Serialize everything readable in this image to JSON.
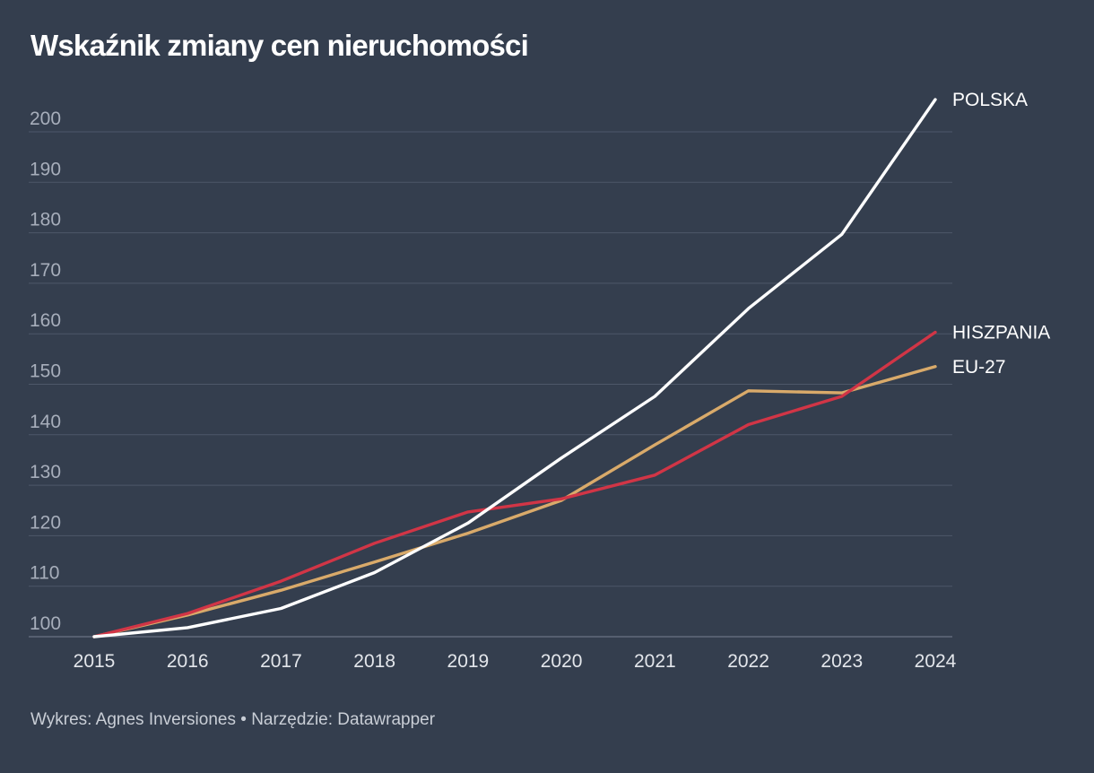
{
  "chart_data": {
    "type": "line",
    "title": "Wskaźnik zmiany cen nieruchomości",
    "x": [
      "2015",
      "2016",
      "2017",
      "2018",
      "2019",
      "2020",
      "2021",
      "2022",
      "2023",
      "2024"
    ],
    "yticks": [
      100,
      110,
      120,
      130,
      140,
      150,
      160,
      170,
      180,
      190,
      200
    ],
    "ylim": [
      100,
      206
    ],
    "grid": true,
    "series": [
      {
        "name": "EU-27",
        "color": "#d9aa6a",
        "values": [
          100,
          104.3,
          109.2,
          114.8,
          120.5,
          127,
          138,
          148.7,
          148.3,
          153.5
        ]
      },
      {
        "name": "HISZPANIA",
        "color": "#d13546",
        "values": [
          100,
          104.6,
          111,
          118.5,
          124.7,
          127.3,
          132,
          142,
          147.6,
          160.3
        ]
      },
      {
        "name": "POLSKA",
        "color": "#ffffff",
        "values": [
          100,
          101.8,
          105.6,
          112.7,
          122.5,
          135.4,
          147.6,
          165,
          179.7,
          206.4
        ]
      }
    ]
  },
  "footer": {
    "text": "Wykres: Agnes Inversiones • Narzędzie: Datawrapper"
  }
}
